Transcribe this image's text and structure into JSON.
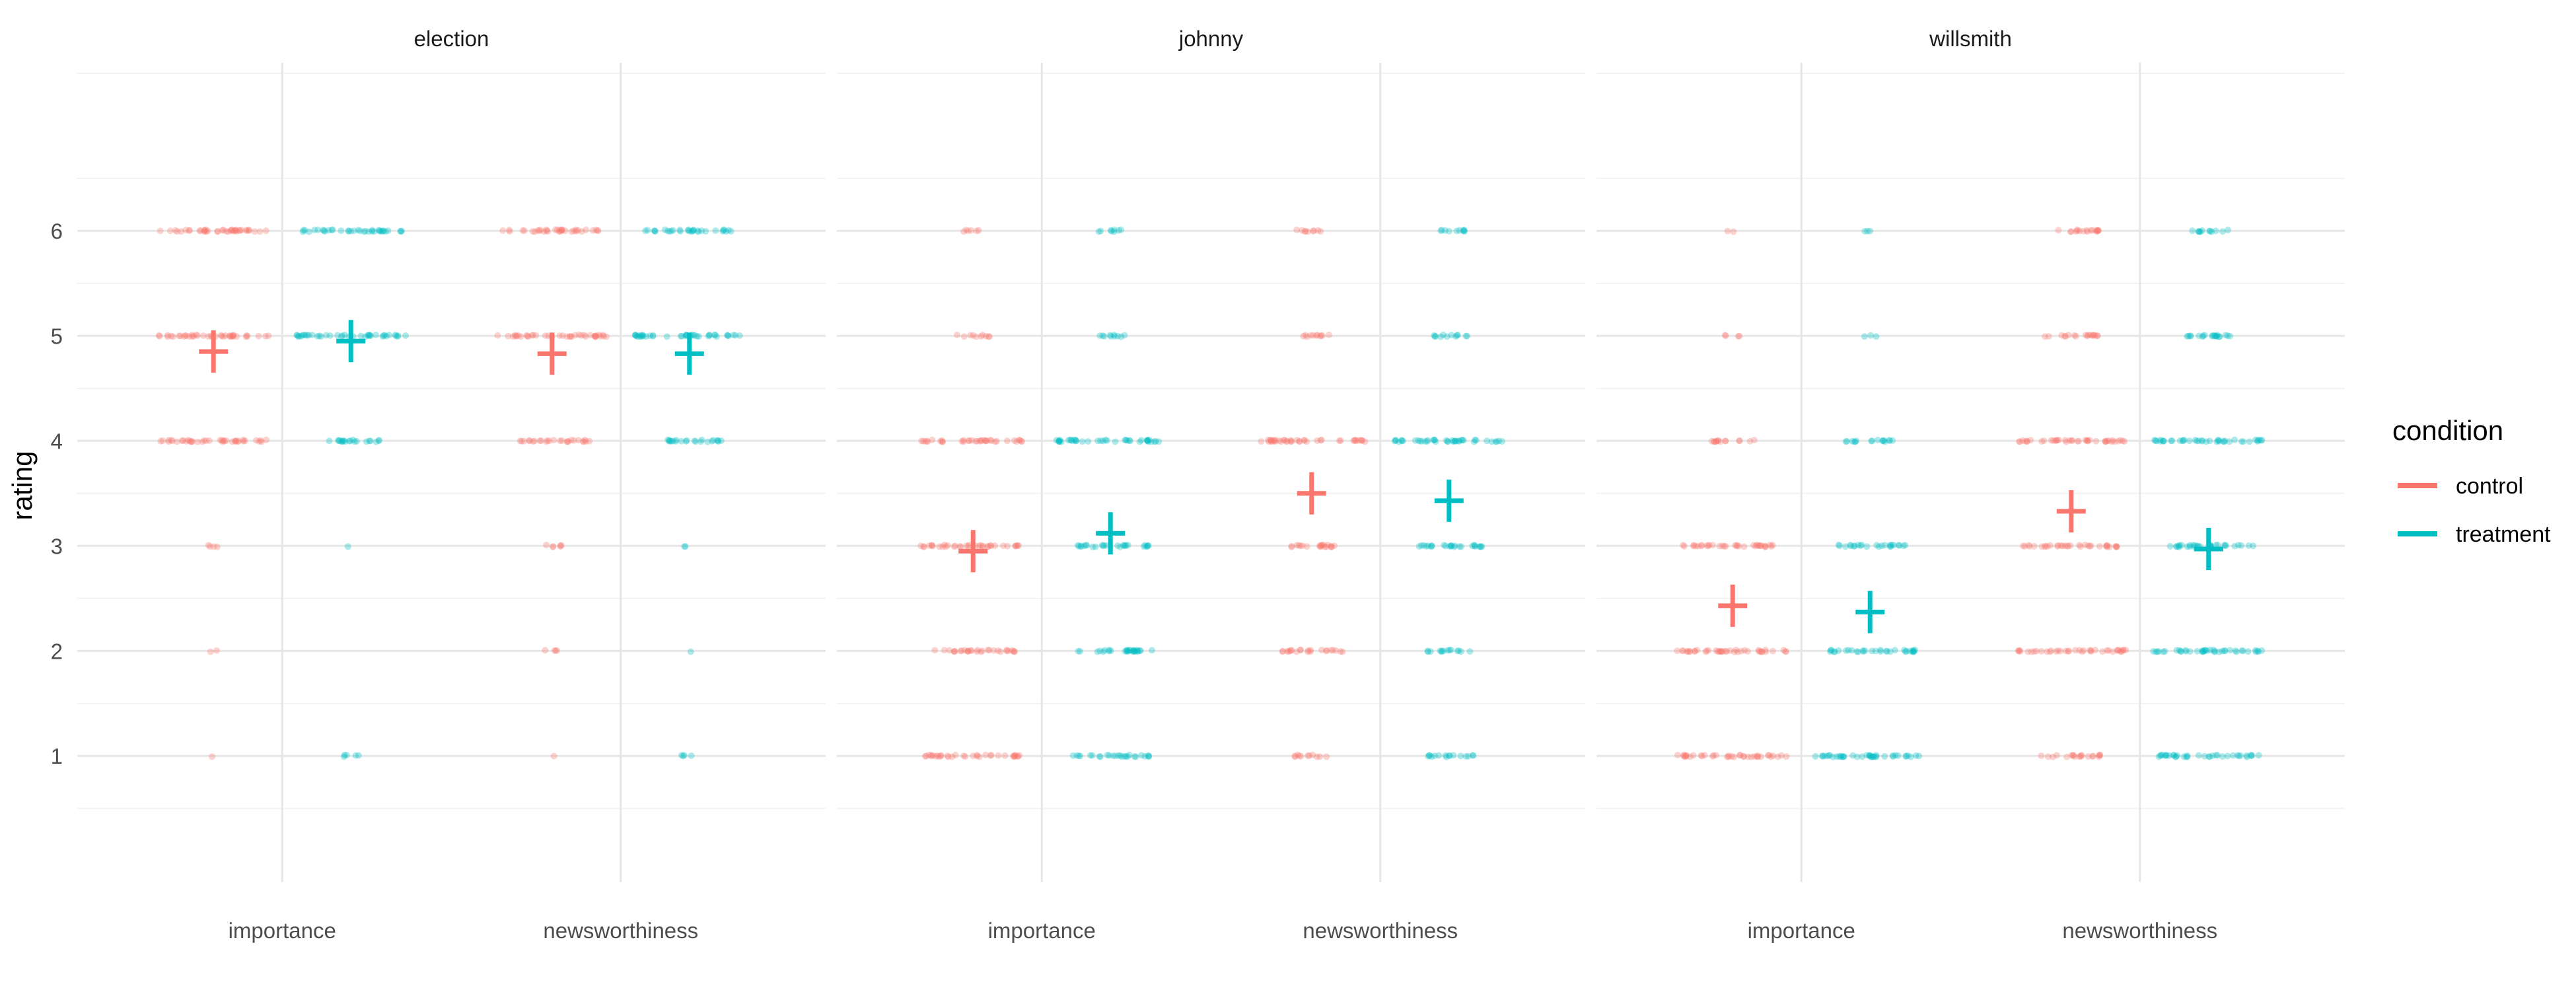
{
  "chart_data": {
    "type": "scatter",
    "ylabel": "rating",
    "xlabel": "",
    "ylim": [
      -0.2,
      7.6
    ],
    "y_ticks": [
      "1",
      "2",
      "3",
      "4",
      "5",
      "6"
    ],
    "grid": true,
    "facets": [
      "election",
      "johnny",
      "willsmith"
    ],
    "categories": [
      "importance",
      "newsworthiness"
    ],
    "legend": {
      "title": "condition",
      "position": "right",
      "entries": [
        {
          "name": "control",
          "color": "#F8766D"
        },
        {
          "name": "treatment",
          "color": "#00BFC4"
        }
      ]
    },
    "points": [
      {
        "facet": "election",
        "category": "importance",
        "condition": "control",
        "levels": [
          {
            "y": 6,
            "n": 40
          },
          {
            "y": 5,
            "n": 40
          },
          {
            "y": 4,
            "n": 40
          },
          {
            "y": 3,
            "n": 4
          },
          {
            "y": 2,
            "n": 2
          },
          {
            "y": 1,
            "n": 1
          }
        ]
      },
      {
        "facet": "election",
        "category": "importance",
        "condition": "treatment",
        "levels": [
          {
            "y": 6,
            "n": 36
          },
          {
            "y": 5,
            "n": 40
          },
          {
            "y": 4,
            "n": 20
          },
          {
            "y": 3,
            "n": 1
          },
          {
            "y": 1,
            "n": 5
          }
        ]
      },
      {
        "facet": "election",
        "category": "newsworthiness",
        "condition": "control",
        "levels": [
          {
            "y": 6,
            "n": 34
          },
          {
            "y": 5,
            "n": 40
          },
          {
            "y": 4,
            "n": 26
          },
          {
            "y": 3,
            "n": 6
          },
          {
            "y": 2,
            "n": 4
          },
          {
            "y": 1,
            "n": 1
          }
        ]
      },
      {
        "facet": "election",
        "category": "newsworthiness",
        "condition": "treatment",
        "levels": [
          {
            "y": 6,
            "n": 30
          },
          {
            "y": 5,
            "n": 40
          },
          {
            "y": 4,
            "n": 22
          },
          {
            "y": 3,
            "n": 2
          },
          {
            "y": 2,
            "n": 1
          },
          {
            "y": 1,
            "n": 4
          }
        ]
      },
      {
        "facet": "johnny",
        "category": "importance",
        "condition": "control",
        "levels": [
          {
            "y": 6,
            "n": 6
          },
          {
            "y": 5,
            "n": 10
          },
          {
            "y": 4,
            "n": 36
          },
          {
            "y": 3,
            "n": 36
          },
          {
            "y": 2,
            "n": 30
          },
          {
            "y": 1,
            "n": 34
          }
        ]
      },
      {
        "facet": "johnny",
        "category": "importance",
        "condition": "treatment",
        "levels": [
          {
            "y": 6,
            "n": 8
          },
          {
            "y": 5,
            "n": 10
          },
          {
            "y": 4,
            "n": 40
          },
          {
            "y": 3,
            "n": 26
          },
          {
            "y": 2,
            "n": 28
          },
          {
            "y": 1,
            "n": 26
          }
        ]
      },
      {
        "facet": "johnny",
        "category": "newsworthiness",
        "condition": "control",
        "levels": [
          {
            "y": 6,
            "n": 9
          },
          {
            "y": 5,
            "n": 11
          },
          {
            "y": 4,
            "n": 40
          },
          {
            "y": 3,
            "n": 20
          },
          {
            "y": 2,
            "n": 22
          },
          {
            "y": 1,
            "n": 11
          }
        ]
      },
      {
        "facet": "johnny",
        "category": "newsworthiness",
        "condition": "treatment",
        "levels": [
          {
            "y": 6,
            "n": 10
          },
          {
            "y": 5,
            "n": 12
          },
          {
            "y": 4,
            "n": 40
          },
          {
            "y": 3,
            "n": 26
          },
          {
            "y": 2,
            "n": 14
          },
          {
            "y": 1,
            "n": 16
          }
        ]
      },
      {
        "facet": "willsmith",
        "category": "importance",
        "condition": "control",
        "levels": [
          {
            "y": 6,
            "n": 2
          },
          {
            "y": 5,
            "n": 4
          },
          {
            "y": 4,
            "n": 14
          },
          {
            "y": 3,
            "n": 34
          },
          {
            "y": 2,
            "n": 40
          },
          {
            "y": 1,
            "n": 38
          }
        ]
      },
      {
        "facet": "willsmith",
        "category": "importance",
        "condition": "treatment",
        "levels": [
          {
            "y": 6,
            "n": 3
          },
          {
            "y": 5,
            "n": 3
          },
          {
            "y": 4,
            "n": 16
          },
          {
            "y": 3,
            "n": 24
          },
          {
            "y": 2,
            "n": 32
          },
          {
            "y": 1,
            "n": 40
          }
        ]
      },
      {
        "facet": "willsmith",
        "category": "newsworthiness",
        "condition": "control",
        "levels": [
          {
            "y": 6,
            "n": 18
          },
          {
            "y": 5,
            "n": 18
          },
          {
            "y": 4,
            "n": 40
          },
          {
            "y": 3,
            "n": 34
          },
          {
            "y": 2,
            "n": 38
          },
          {
            "y": 1,
            "n": 20
          }
        ]
      },
      {
        "facet": "willsmith",
        "category": "newsworthiness",
        "condition": "treatment",
        "levels": [
          {
            "y": 6,
            "n": 12
          },
          {
            "y": 5,
            "n": 20
          },
          {
            "y": 4,
            "n": 40
          },
          {
            "y": 3,
            "n": 32
          },
          {
            "y": 2,
            "n": 40
          },
          {
            "y": 1,
            "n": 36
          }
        ]
      }
    ],
    "means": [
      {
        "facet": "election",
        "category": "importance",
        "condition": "control",
        "mean": 4.85
      },
      {
        "facet": "election",
        "category": "importance",
        "condition": "treatment",
        "mean": 4.95
      },
      {
        "facet": "election",
        "category": "newsworthiness",
        "condition": "control",
        "mean": 4.83
      },
      {
        "facet": "election",
        "category": "newsworthiness",
        "condition": "treatment",
        "mean": 4.83
      },
      {
        "facet": "johnny",
        "category": "importance",
        "condition": "control",
        "mean": 2.95
      },
      {
        "facet": "johnny",
        "category": "importance",
        "condition": "treatment",
        "mean": 3.12
      },
      {
        "facet": "johnny",
        "category": "newsworthiness",
        "condition": "control",
        "mean": 3.5
      },
      {
        "facet": "johnny",
        "category": "newsworthiness",
        "condition": "treatment",
        "mean": 3.43
      },
      {
        "facet": "willsmith",
        "category": "importance",
        "condition": "control",
        "mean": 2.43
      },
      {
        "facet": "willsmith",
        "category": "importance",
        "condition": "treatment",
        "mean": 2.37
      },
      {
        "facet": "willsmith",
        "category": "newsworthiness",
        "condition": "control",
        "mean": 3.33
      },
      {
        "facet": "willsmith",
        "category": "newsworthiness",
        "condition": "treatment",
        "mean": 2.97
      }
    ]
  }
}
